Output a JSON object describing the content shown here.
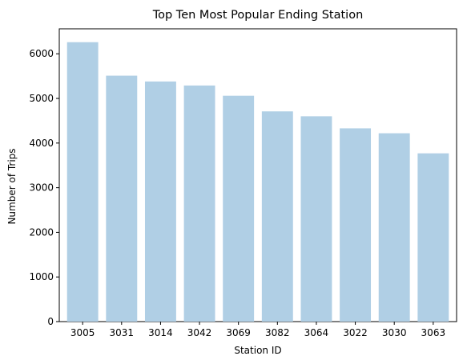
{
  "chart_data": {
    "type": "bar",
    "title": "Top Ten Most Popular Ending Station",
    "xlabel": "Station ID",
    "ylabel": "Number of Trips",
    "categories": [
      "3005",
      "3031",
      "3014",
      "3042",
      "3069",
      "3082",
      "3064",
      "3022",
      "3030",
      "3063"
    ],
    "values": [
      6260,
      5510,
      5380,
      5290,
      5060,
      4710,
      4600,
      4330,
      4220,
      3770
    ],
    "ylim": [
      0,
      6560
    ],
    "yticks": [
      0,
      1000,
      2000,
      3000,
      4000,
      5000,
      6000
    ],
    "grid": false,
    "legend": "none",
    "bar_color": "#b0cfe5"
  }
}
